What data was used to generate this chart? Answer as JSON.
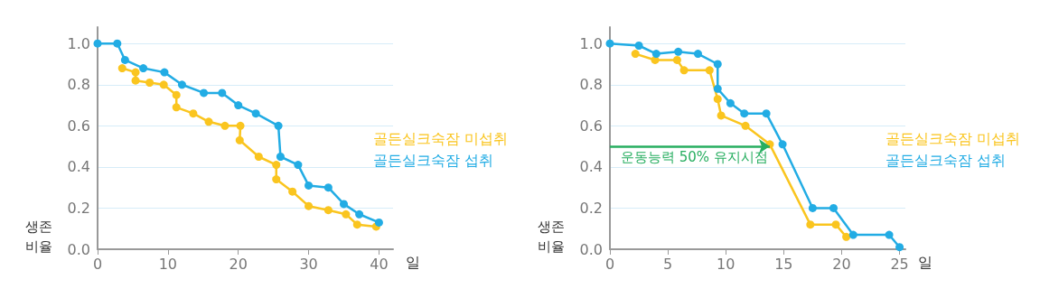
{
  "chart_data": [
    {
      "type": "line",
      "xlabel": "일",
      "ylabel": "생존 비율",
      "xlim": [
        0,
        42
      ],
      "xticks": [
        0,
        10,
        20,
        30,
        40
      ],
      "ylim": [
        0,
        1.08
      ],
      "yticks": [
        {
          "value": 0,
          "label": "0.0"
        },
        {
          "value": 0.2,
          "label": "0.2"
        },
        {
          "value": 0.4,
          "label": "0.4"
        },
        {
          "value": 0.6,
          "label": "0.6"
        },
        {
          "value": 0.8,
          "label": "0.8"
        },
        {
          "value": 1,
          "label": "1.0"
        }
      ],
      "grid": "y",
      "legend": "right",
      "marker": "circle",
      "line_style": "solid",
      "series": [
        {
          "name": "골든실크숙잠 미섭취",
          "color": "#fac51f",
          "x": [
            3.5,
            5.4,
            5.4,
            7.4,
            9.4,
            11.2,
            11.2,
            13.6,
            15.8,
            18.1,
            20.3,
            20.2,
            22.9,
            25.4,
            25.4,
            27.7,
            30,
            32.8,
            35.3,
            36.9,
            39.6
          ],
          "values": [
            0.88,
            0.86,
            0.82,
            0.81,
            0.8,
            0.75,
            0.69,
            0.66,
            0.62,
            0.6,
            0.6,
            0.53,
            0.45,
            0.41,
            0.34,
            0.28,
            0.21,
            0.19,
            0.17,
            0.12,
            0.11
          ]
        },
        {
          "name": "골든실크숙잠 섭취",
          "color": "#22ace4",
          "x": [
            0,
            2.8,
            3.9,
            6.5,
            9.5,
            12,
            15.1,
            17.7,
            20,
            22.5,
            25.7,
            26,
            28.5,
            30,
            32.8,
            35,
            37.2,
            40
          ],
          "values": [
            1,
            1,
            0.92,
            0.88,
            0.86,
            0.8,
            0.76,
            0.76,
            0.7,
            0.66,
            0.6,
            0.45,
            0.41,
            0.31,
            0.3,
            0.22,
            0.17,
            0.13
          ]
        }
      ]
    },
    {
      "type": "line",
      "xlabel": "일",
      "ylabel": "생존 비율",
      "xlim": [
        0,
        25.5
      ],
      "xticks": [
        0,
        5,
        10,
        15,
        20,
        25
      ],
      "ylim": [
        0,
        1.08
      ],
      "yticks": [
        {
          "value": 0,
          "label": "0.0"
        },
        {
          "value": 0.2,
          "label": "0.2"
        },
        {
          "value": 0.4,
          "label": "0.4"
        },
        {
          "value": 0.6,
          "label": "0.6"
        },
        {
          "value": 0.8,
          "label": "0.8"
        },
        {
          "value": 1,
          "label": "1.0"
        }
      ],
      "grid": "y",
      "legend": "right",
      "marker": "circle",
      "line_style": "solid",
      "annotations": [
        {
          "text": "운동능력 50% 유지시점",
          "x": 13.8,
          "y": 0.5
        }
      ],
      "series": [
        {
          "name": "골든실크숙잠 미섭취",
          "color": "#fac51f",
          "x": [
            2.2,
            3.9,
            5.8,
            6.4,
            8.6,
            9.3,
            9.6,
            11.7,
            13.8,
            17.3,
            19.5,
            20.4
          ],
          "values": [
            0.95,
            0.92,
            0.92,
            0.87,
            0.87,
            0.73,
            0.65,
            0.6,
            0.51,
            0.12,
            0.12,
            0.06
          ]
        },
        {
          "name": "골든실크숙잠 섭취",
          "color": "#22ace4",
          "x": [
            0,
            2.5,
            4,
            5.9,
            7.6,
            9.3,
            9.3,
            10.4,
            11.6,
            13.5,
            14.9,
            17.5,
            19.3,
            21,
            24.1,
            25
          ],
          "values": [
            1,
            0.99,
            0.95,
            0.96,
            0.95,
            0.9,
            0.78,
            0.71,
            0.66,
            0.66,
            0.51,
            0.2,
            0.2,
            0.07,
            0.07,
            0.01
          ]
        }
      ]
    }
  ]
}
